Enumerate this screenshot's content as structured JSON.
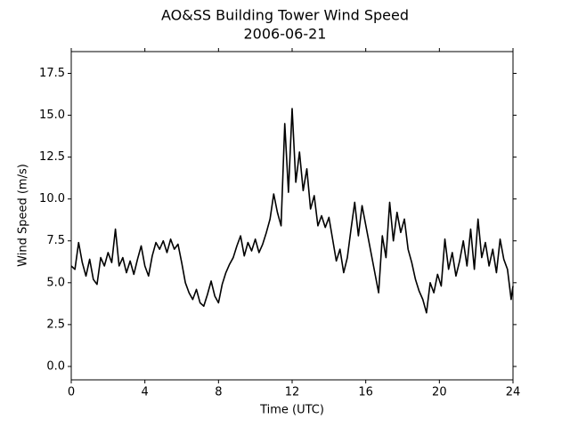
{
  "chart_data": {
    "type": "line",
    "title": "AO&SS Building Tower Wind Speed",
    "subtitle": "2006-06-21",
    "x_label": "Time (UTC)",
    "y_label": "Wind Speed (m/s)",
    "x": [
      0.0,
      0.2,
      0.4,
      0.6,
      0.8,
      1.0,
      1.2,
      1.4,
      1.6,
      1.8,
      2.0,
      2.2,
      2.4,
      2.6,
      2.8,
      3.0,
      3.2,
      3.4,
      3.6,
      3.8,
      4.0,
      4.2,
      4.4,
      4.6,
      4.8,
      5.0,
      5.2,
      5.4,
      5.6,
      5.8,
      6.0,
      6.2,
      6.4,
      6.6,
      6.8,
      7.0,
      7.2,
      7.4,
      7.6,
      7.8,
      8.0,
      8.2,
      8.4,
      8.6,
      8.8,
      9.0,
      9.2,
      9.4,
      9.6,
      9.8,
      10.0,
      10.2,
      10.4,
      10.6,
      10.8,
      11.0,
      11.2,
      11.4,
      11.6,
      11.8,
      12.0,
      12.2,
      12.4,
      12.6,
      12.8,
      13.0,
      13.2,
      13.4,
      13.6,
      13.8,
      14.0,
      14.2,
      14.4,
      14.6,
      14.8,
      15.0,
      15.2,
      15.4,
      15.6,
      15.8,
      16.7,
      16.9,
      17.1,
      17.3,
      17.5,
      17.7,
      17.9,
      18.1,
      18.3,
      18.5,
      18.7,
      18.9,
      19.1,
      19.3,
      19.5,
      19.7,
      19.9,
      20.1,
      20.3,
      20.5,
      20.7,
      20.9,
      21.1,
      21.3,
      21.5,
      21.7,
      21.9,
      22.1,
      22.3,
      22.5,
      22.7,
      22.9,
      23.1,
      23.3,
      23.5,
      23.7,
      23.9,
      24.0
    ],
    "series": [
      {
        "name": "Wind Speed",
        "color": "#000000",
        "values": [
          6.0,
          5.8,
          7.4,
          6.2,
          5.4,
          6.4,
          5.2,
          4.9,
          6.5,
          6.0,
          6.8,
          6.2,
          8.2,
          6.0,
          6.5,
          5.6,
          6.3,
          5.5,
          6.4,
          7.2,
          6.0,
          5.4,
          6.6,
          7.4,
          7.0,
          7.5,
          6.8,
          7.6,
          7.0,
          7.3,
          6.2,
          5.0,
          4.4,
          4.0,
          4.6,
          3.8,
          3.6,
          4.3,
          5.1,
          4.2,
          3.8,
          4.9,
          5.6,
          6.1,
          6.5,
          7.2,
          7.8,
          6.6,
          7.4,
          6.9,
          7.6,
          6.8,
          7.3,
          8.0,
          8.8,
          10.3,
          9.2,
          8.4,
          14.5,
          10.4,
          15.4,
          11.0,
          12.8,
          10.5,
          11.8,
          9.4,
          10.2,
          8.4,
          9.0,
          8.3,
          8.9,
          7.6,
          6.3,
          7.0,
          5.6,
          6.5,
          8.2,
          9.8,
          7.8,
          9.6,
          4.4,
          7.8,
          6.5,
          9.8,
          7.5,
          9.2,
          8.0,
          8.8,
          7.0,
          6.2,
          5.2,
          4.5,
          4.0,
          3.2,
          5.0,
          4.4,
          5.5,
          4.8,
          7.6,
          5.8,
          6.8,
          5.4,
          6.3,
          7.5,
          6.0,
          8.2,
          5.8,
          8.8,
          6.5,
          7.4,
          6.0,
          7.0,
          5.6,
          7.6,
          6.4,
          5.8,
          4.0,
          4.8
        ]
      }
    ],
    "xlim": [
      0,
      24
    ],
    "xticks": [
      0,
      4,
      8,
      12,
      16,
      20,
      24
    ],
    "ylim": [
      -0.8,
      18.8
    ],
    "yticks": [
      {
        "value": 0,
        "label": "0.0"
      },
      2.5,
      {
        "value": 5,
        "label": "5.0"
      },
      7.5,
      {
        "value": 10,
        "label": "10.0"
      },
      12.5,
      {
        "value": 15,
        "label": "15.0"
      },
      17.5
    ],
    "grid": false
  }
}
